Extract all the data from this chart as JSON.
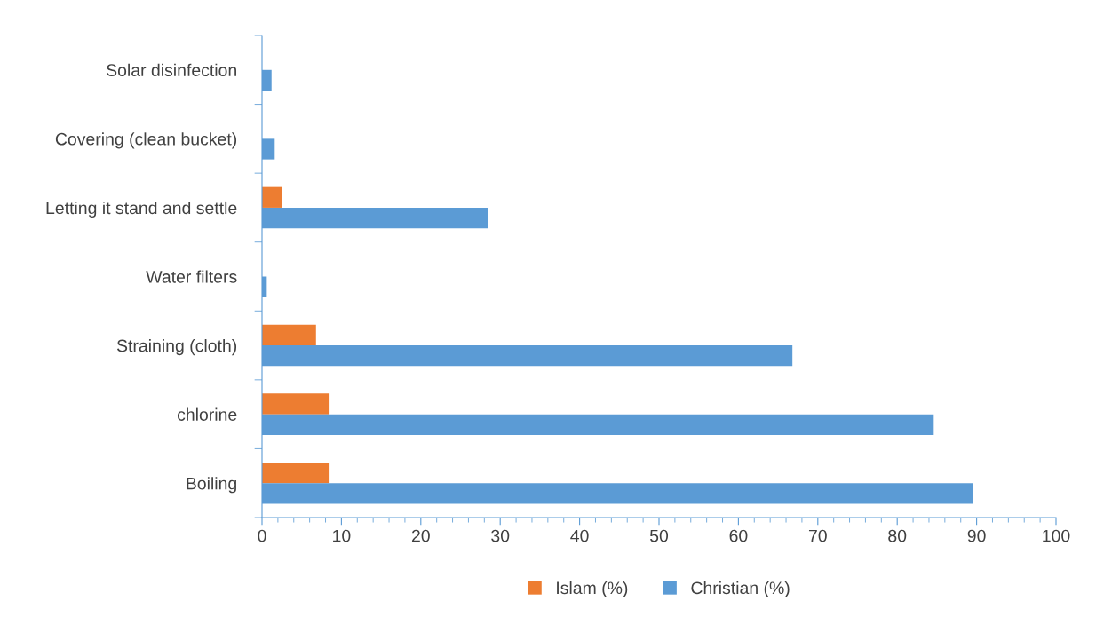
{
  "chart_data": {
    "type": "bar",
    "orientation": "horizontal",
    "categories": [
      "Solar disinfection",
      "Covering (clean bucket)",
      "Letting it stand and settle",
      "Water filters",
      "Straining (cloth)",
      "chlorine",
      "Boiling"
    ],
    "series": [
      {
        "name": "Islam (%)",
        "color": "#ed7d31",
        "values": [
          0,
          0,
          2.5,
          0,
          6.8,
          8.4,
          8.4
        ]
      },
      {
        "name": "Christian (%)",
        "color": "#5b9bd5",
        "values": [
          1.2,
          1.6,
          28.5,
          0.6,
          66.8,
          84.6,
          89.5
        ]
      }
    ],
    "xlim": [
      0,
      100
    ],
    "xticks": [
      0,
      10,
      20,
      30,
      40,
      50,
      60,
      70,
      80,
      90,
      100
    ],
    "grid": false,
    "legend": "bottom"
  }
}
